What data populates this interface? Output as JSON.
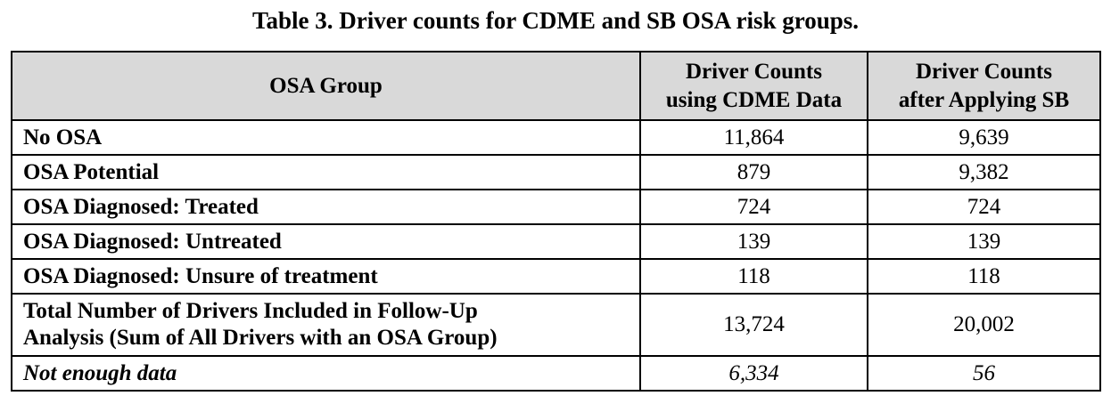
{
  "caption": "Table 3. Driver counts for CDME and SB OSA risk groups.",
  "headers": {
    "col1": "OSA Group",
    "col2_line1": "Driver Counts",
    "col2_line2": "using CDME Data",
    "col3_line1": "Driver Counts",
    "col3_line2": "after Applying SB"
  },
  "rows": [
    {
      "group": "No OSA",
      "cdme": "11,864",
      "sb": "9,639"
    },
    {
      "group": "OSA Potential",
      "cdme": "879",
      "sb": "9,382"
    },
    {
      "group": "OSA Diagnosed: Treated",
      "cdme": "724",
      "sb": "724"
    },
    {
      "group": "OSA Diagnosed: Untreated",
      "cdme": "139",
      "sb": "139"
    },
    {
      "group": "OSA Diagnosed: Unsure of treatment",
      "cdme": "118",
      "sb": "118"
    },
    {
      "group_line1": "Total Number of Drivers Included in Follow-Up",
      "group_line2": "Analysis (Sum of All Drivers with an OSA Group)",
      "cdme": "13,724",
      "sb": "20,002"
    },
    {
      "group": "Not enough data",
      "cdme": "6,334",
      "sb": "56"
    }
  ]
}
